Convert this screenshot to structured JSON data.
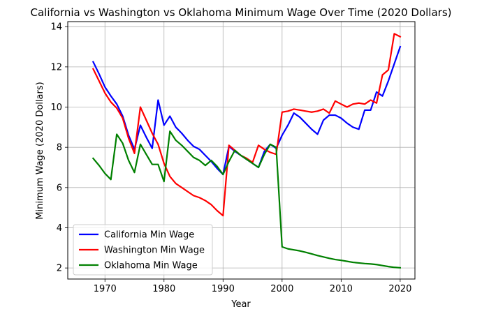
{
  "chart_data": {
    "type": "line",
    "title": "California vs Washington vs Oklahoma Minimum Wage Over Time (2020 Dollars)",
    "xlabel": "Year",
    "ylabel": "Minimum Wage (2020 Dollars)",
    "xlim": [
      1963.7,
      2022.5
    ],
    "ylim": [
      1.45,
      14.25
    ],
    "xticks": [
      "1970",
      "1980",
      "1990",
      "2000",
      "2010",
      "2020"
    ],
    "yticks": [
      "2",
      "4",
      "6",
      "8",
      "10",
      "12",
      "14"
    ],
    "grid": true,
    "legend_position": "lower-left",
    "x": [
      1968,
      1969,
      1970,
      1971,
      1972,
      1973,
      1974,
      1975,
      1976,
      1977,
      1978,
      1979,
      1980,
      1981,
      1982,
      1983,
      1984,
      1985,
      1986,
      1987,
      1988,
      1989,
      1990,
      1991,
      1992,
      1993,
      1994,
      1995,
      1996,
      1997,
      1998,
      1999,
      2000,
      2001,
      2002,
      2003,
      2004,
      2005,
      2006,
      2007,
      2008,
      2009,
      2010,
      2011,
      2012,
      2013,
      2014,
      2015,
      2016,
      2017,
      2018,
      2019,
      2020
    ],
    "series": [
      {
        "name": "California Min Wage",
        "color": "#0000ff",
        "values": [
          12.25,
          11.65,
          11.0,
          10.55,
          10.15,
          9.55,
          8.6,
          7.9,
          9.1,
          8.5,
          7.95,
          10.35,
          9.1,
          9.55,
          9.0,
          8.7,
          8.35,
          8.05,
          7.9,
          7.6,
          7.3,
          6.95,
          6.65,
          8.05,
          7.8,
          7.6,
          7.4,
          7.2,
          7.0,
          7.8,
          8.15,
          7.95,
          8.6,
          9.1,
          9.7,
          9.5,
          9.2,
          8.9,
          8.65,
          9.35,
          9.6,
          9.6,
          9.45,
          9.2,
          9.0,
          8.9,
          9.85,
          9.85,
          10.75,
          10.55,
          11.3,
          12.15,
          13.0
        ]
      },
      {
        "name": "Washington Min Wage",
        "color": "#ff0000",
        "values": [
          11.9,
          11.3,
          10.7,
          10.25,
          9.95,
          9.45,
          8.45,
          7.7,
          10.0,
          9.35,
          8.7,
          8.15,
          7.2,
          6.55,
          6.2,
          6.0,
          5.8,
          5.6,
          5.5,
          5.35,
          5.15,
          4.85,
          4.6,
          8.1,
          7.85,
          7.6,
          7.45,
          7.25,
          8.1,
          7.9,
          7.75,
          7.65,
          9.75,
          9.8,
          9.9,
          9.85,
          9.8,
          9.75,
          9.8,
          9.9,
          9.7,
          10.3,
          10.15,
          10.0,
          10.15,
          10.2,
          10.15,
          10.35,
          10.2,
          11.6,
          11.85,
          13.65,
          13.5
        ]
      },
      {
        "name": "Oklahoma Min Wage",
        "color": "#008000",
        "values": [
          7.45,
          7.1,
          6.7,
          6.4,
          8.65,
          8.2,
          7.35,
          6.75,
          8.15,
          7.65,
          7.15,
          7.15,
          6.3,
          8.8,
          8.35,
          8.1,
          7.8,
          7.5,
          7.35,
          7.1,
          7.35,
          7.05,
          6.65,
          7.3,
          7.85,
          7.6,
          7.4,
          7.2,
          7.0,
          7.65,
          8.15,
          8.0,
          3.05,
          2.95,
          2.9,
          2.85,
          2.78,
          2.7,
          2.62,
          2.55,
          2.48,
          2.42,
          2.38,
          2.33,
          2.28,
          2.25,
          2.22,
          2.2,
          2.17,
          2.12,
          2.07,
          2.03,
          2.01
        ]
      }
    ]
  }
}
